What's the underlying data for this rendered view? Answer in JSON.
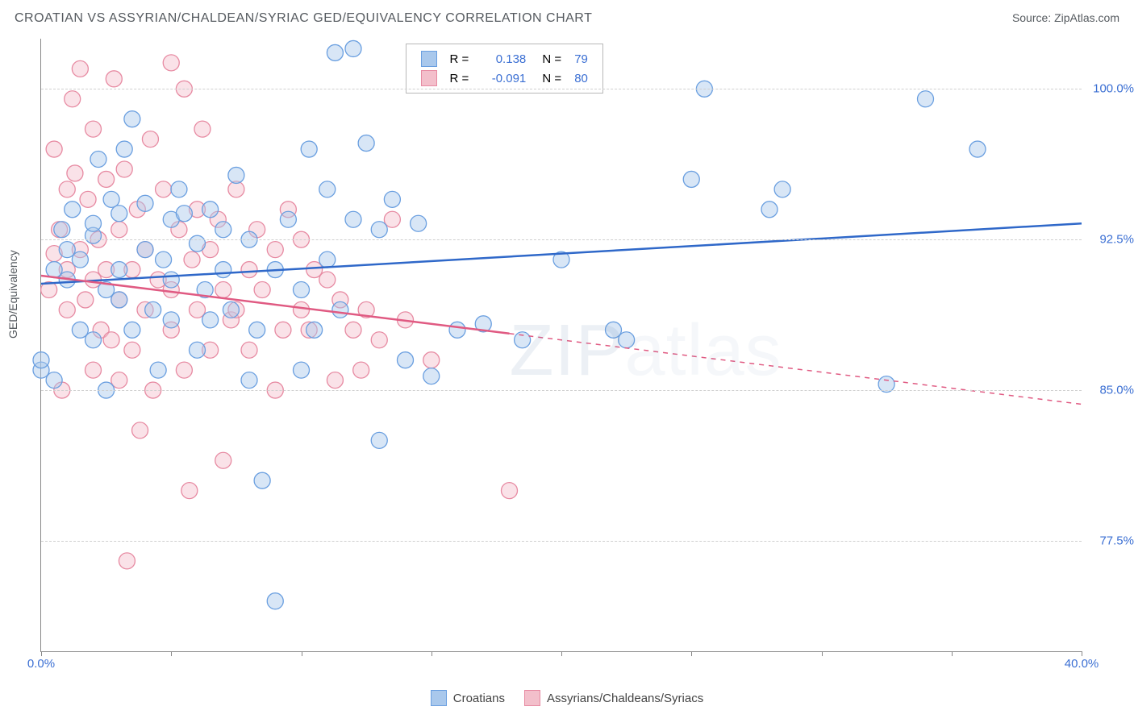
{
  "title": "CROATIAN VS ASSYRIAN/CHALDEAN/SYRIAC GED/EQUIVALENCY CORRELATION CHART",
  "source": "Source: ZipAtlas.com",
  "ylabel": "GED/Equivalency",
  "watermark_part1": "ZIP",
  "watermark_part2": "atlas",
  "chart": {
    "type": "scatter-with-regression",
    "background_color": "#ffffff",
    "grid_color": "#cfcfcf",
    "axis_color": "#888888",
    "text_color": "#555a5f",
    "tick_label_color": "#3b6fd3",
    "xlim": [
      0,
      40
    ],
    "ylim": [
      72,
      102.5
    ],
    "y_ticks": [
      77.5,
      85.0,
      92.5,
      100.0
    ],
    "y_tick_labels": [
      "77.5%",
      "85.0%",
      "92.5%",
      "100.0%"
    ],
    "x_ticks": [
      0,
      5,
      10,
      15,
      20,
      25,
      30,
      35,
      40
    ],
    "x_labeled_ticks": {
      "0": "0.0%",
      "40": "40.0%"
    },
    "marker_radius": 10,
    "marker_opacity": 0.45,
    "line_width": 2.5,
    "series": [
      {
        "name": "Croatians",
        "label": "Croatians",
        "R": "0.138",
        "N": "79",
        "color_fill": "#a9c8ec",
        "color_stroke": "#6a9fe0",
        "line_color": "#2f68c9",
        "trend": {
          "x1": 0,
          "y1": 90.3,
          "x2": 40,
          "y2": 93.3,
          "solid_until_x": 40
        },
        "points": [
          [
            0,
            86
          ],
          [
            0,
            86.5
          ],
          [
            0.5,
            85.5
          ],
          [
            0.5,
            91
          ],
          [
            0.8,
            93
          ],
          [
            1,
            92
          ],
          [
            1,
            90.5
          ],
          [
            1.2,
            94
          ],
          [
            1.5,
            91.5
          ],
          [
            1.5,
            88
          ],
          [
            2,
            92.7
          ],
          [
            2,
            87.5
          ],
          [
            2,
            93.3
          ],
          [
            2.2,
            96.5
          ],
          [
            2.5,
            90
          ],
          [
            2.5,
            85
          ],
          [
            2.7,
            94.5
          ],
          [
            3,
            91
          ],
          [
            3,
            89.5
          ],
          [
            3,
            93.8
          ],
          [
            3.2,
            97
          ],
          [
            3.5,
            98.5
          ],
          [
            3.5,
            88
          ],
          [
            4,
            92
          ],
          [
            4,
            94.3
          ],
          [
            4.3,
            89
          ],
          [
            4.5,
            86
          ],
          [
            4.7,
            91.5
          ],
          [
            5,
            93.5
          ],
          [
            5,
            90.5
          ],
          [
            5,
            88.5
          ],
          [
            5.3,
            95
          ],
          [
            5.5,
            93.8
          ],
          [
            6,
            92.3
          ],
          [
            6,
            87
          ],
          [
            6.3,
            90
          ],
          [
            6.5,
            94
          ],
          [
            6.5,
            88.5
          ],
          [
            7,
            91
          ],
          [
            7,
            93
          ],
          [
            7.3,
            89
          ],
          [
            7.5,
            95.7
          ],
          [
            8,
            85.5
          ],
          [
            8,
            92.5
          ],
          [
            8.3,
            88
          ],
          [
            8.5,
            80.5
          ],
          [
            9,
            74.5
          ],
          [
            9,
            91
          ],
          [
            9.5,
            93.5
          ],
          [
            10,
            86
          ],
          [
            10,
            90
          ],
          [
            10.3,
            97
          ],
          [
            10.5,
            88
          ],
          [
            11,
            95
          ],
          [
            11,
            91.5
          ],
          [
            11.3,
            101.8
          ],
          [
            11.5,
            89
          ],
          [
            12,
            93.5
          ],
          [
            12,
            102
          ],
          [
            12.5,
            97.3
          ],
          [
            13,
            82.5
          ],
          [
            13,
            93
          ],
          [
            13.5,
            94.5
          ],
          [
            14,
            86.5
          ],
          [
            14.5,
            93.3
          ],
          [
            15,
            85.7
          ],
          [
            16,
            88
          ],
          [
            17,
            88.3
          ],
          [
            18.5,
            87.5
          ],
          [
            20,
            91.5
          ],
          [
            22,
            88
          ],
          [
            22.5,
            87.5
          ],
          [
            25,
            95.5
          ],
          [
            25.5,
            100
          ],
          [
            28,
            94
          ],
          [
            28.5,
            95
          ],
          [
            32.5,
            85.3
          ],
          [
            34,
            99.5
          ],
          [
            36,
            97
          ]
        ]
      },
      {
        "name": "Assyrians/Chaldeans/Syriacs",
        "label": "Assyrians/Chaldeans/Syriacs",
        "R": "-0.091",
        "N": "80",
        "color_fill": "#f3bfcb",
        "color_stroke": "#e78aa2",
        "line_color": "#e05a82",
        "trend": {
          "x1": 0,
          "y1": 90.7,
          "x2": 40,
          "y2": 84.3,
          "solid_until_x": 18
        },
        "points": [
          [
            0.3,
            90
          ],
          [
            0.5,
            91.8
          ],
          [
            0.5,
            97
          ],
          [
            0.7,
            93
          ],
          [
            0.8,
            85
          ],
          [
            1,
            95
          ],
          [
            1,
            91
          ],
          [
            1,
            89
          ],
          [
            1.2,
            99.5
          ],
          [
            1.3,
            95.8
          ],
          [
            1.5,
            92
          ],
          [
            1.5,
            101
          ],
          [
            1.7,
            89.5
          ],
          [
            1.8,
            94.5
          ],
          [
            2,
            90.5
          ],
          [
            2,
            86
          ],
          [
            2,
            98
          ],
          [
            2.2,
            92.5
          ],
          [
            2.3,
            88
          ],
          [
            2.5,
            91
          ],
          [
            2.5,
            95.5
          ],
          [
            2.7,
            87.5
          ],
          [
            2.8,
            100.5
          ],
          [
            3,
            93
          ],
          [
            3,
            89.5
          ],
          [
            3,
            85.5
          ],
          [
            3.2,
            96
          ],
          [
            3.3,
            76.5
          ],
          [
            3.5,
            91
          ],
          [
            3.5,
            87
          ],
          [
            3.7,
            94
          ],
          [
            3.8,
            83
          ],
          [
            4,
            89
          ],
          [
            4,
            92
          ],
          [
            4.2,
            97.5
          ],
          [
            4.3,
            85
          ],
          [
            4.5,
            90.5
          ],
          [
            4.7,
            95
          ],
          [
            5,
            90
          ],
          [
            5,
            101.3
          ],
          [
            5,
            88
          ],
          [
            5.3,
            93
          ],
          [
            5.5,
            86
          ],
          [
            5.5,
            100
          ],
          [
            5.7,
            80
          ],
          [
            5.8,
            91.5
          ],
          [
            6,
            89
          ],
          [
            6,
            94
          ],
          [
            6.2,
            98
          ],
          [
            6.5,
            87
          ],
          [
            6.5,
            92
          ],
          [
            6.8,
            93.5
          ],
          [
            7,
            81.5
          ],
          [
            7,
            90
          ],
          [
            7.3,
            88.5
          ],
          [
            7.5,
            95
          ],
          [
            7.5,
            89
          ],
          [
            8,
            91
          ],
          [
            8,
            87
          ],
          [
            8.3,
            93
          ],
          [
            8.5,
            90
          ],
          [
            9,
            85
          ],
          [
            9,
            92
          ],
          [
            9.3,
            88
          ],
          [
            9.5,
            94
          ],
          [
            10,
            89
          ],
          [
            10,
            92.5
          ],
          [
            10.3,
            88
          ],
          [
            10.5,
            91
          ],
          [
            11,
            90.5
          ],
          [
            11.3,
            85.5
          ],
          [
            11.5,
            89.5
          ],
          [
            12,
            88
          ],
          [
            12.3,
            86
          ],
          [
            12.5,
            89
          ],
          [
            13,
            87.5
          ],
          [
            13.5,
            93.5
          ],
          [
            14,
            88.5
          ],
          [
            15,
            86.5
          ],
          [
            18,
            80
          ]
        ]
      }
    ],
    "legend_top": {
      "R_label": "R =",
      "N_label": "N ="
    }
  }
}
